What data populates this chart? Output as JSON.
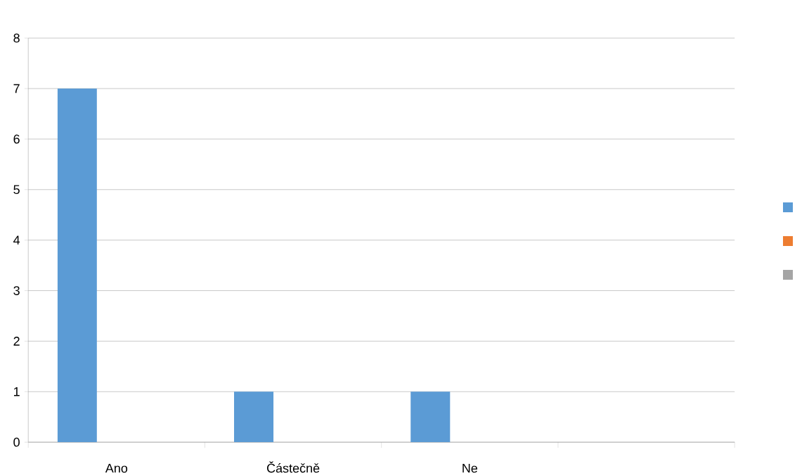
{
  "chart_data": {
    "type": "bar",
    "categories": [
      "Ano",
      "Částečně",
      "Ne",
      null
    ],
    "series": [
      {
        "color": "#5b9bd5",
        "values": [
          7,
          1,
          1,
          null
        ]
      },
      {
        "color": "#ed7d31",
        "values": [
          null,
          null,
          null,
          null
        ]
      },
      {
        "color": "#a5a5a5",
        "values": [
          null,
          null,
          null,
          null
        ]
      }
    ],
    "ylim": [
      0,
      8
    ],
    "yticks": [
      0,
      1,
      2,
      3,
      4,
      5,
      6,
      7,
      8
    ],
    "grid": "y"
  }
}
